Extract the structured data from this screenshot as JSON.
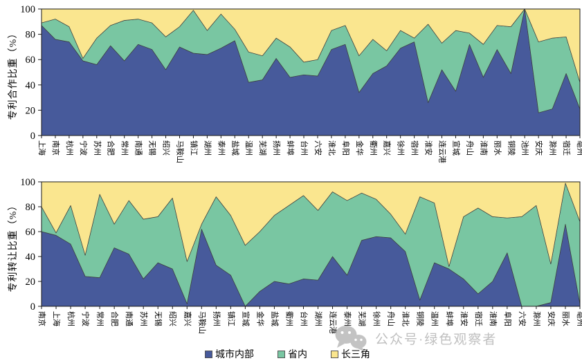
{
  "colors": {
    "within_city": "#475a9b",
    "within_province": "#79c6a2",
    "yangtze_delta": "#fae68f",
    "outline": "#3c3c3c",
    "frame": "#1a1a1a",
    "text": "#000000",
    "watermark": "#b5b5b5"
  },
  "legend": {
    "items": [
      {
        "key": "within_city",
        "label": "城市内部"
      },
      {
        "key": "within_province",
        "label": "省内"
      },
      {
        "key": "yangtze_delta",
        "label": "长三角"
      }
    ]
  },
  "watermark": {
    "text": "公众号·绿色观察者",
    "icon": "wechat-icon"
  },
  "chart_data": [
    {
      "type": "area",
      "stacked": true,
      "title": "",
      "xlabel": "",
      "ylabel": "专利合作比重（%）",
      "ylim": [
        0,
        100
      ],
      "yticks": [
        0,
        20,
        40,
        60,
        80,
        100
      ],
      "grid": false,
      "legend_position": "shared-bottom",
      "categories": [
        "上海",
        "南京",
        "杭州",
        "宁波",
        "苏州",
        "合肥",
        "常州",
        "南通",
        "无锡",
        "绍兴",
        "马鞍山",
        "镇江",
        "湖州",
        "泰州",
        "盐城",
        "温州",
        "芜湖",
        "扬州",
        "蚌埠",
        "台州",
        "六安",
        "淮北",
        "阜阳",
        "金华",
        "衢州",
        "嘉兴",
        "徐州",
        "宿州",
        "淮安",
        "连云港",
        "宣城",
        "舟山",
        "淮南",
        "丽水",
        "铜陵",
        "池州",
        "安庆",
        "滁州",
        "宿迁",
        "亳州"
      ],
      "series": [
        {
          "key": "within_city",
          "name": "城市内部",
          "values": [
            87,
            76,
            74,
            59,
            56,
            71,
            59,
            72,
            68,
            52,
            70,
            65,
            64,
            69,
            75,
            42,
            44,
            61,
            46,
            48,
            47,
            68,
            72,
            34,
            49,
            55,
            69,
            74,
            26,
            52,
            35,
            72,
            46,
            68,
            49,
            100,
            18,
            21,
            49,
            21
          ]
        },
        {
          "key": "within_province",
          "name": "省内",
          "values": [
            2,
            16,
            12,
            2,
            21,
            16,
            32,
            20,
            21,
            26,
            16,
            34,
            19,
            27,
            9,
            24,
            19,
            16,
            24,
            10,
            13,
            15,
            15,
            29,
            27,
            12,
            14,
            3,
            62,
            21,
            48,
            9,
            26,
            19,
            37,
            0,
            56,
            56,
            29,
            21
          ]
        },
        {
          "key": "yangtze_delta",
          "name": "长三角",
          "values": [
            11,
            8,
            14,
            39,
            23,
            13,
            9,
            8,
            11,
            22,
            14,
            1,
            17,
            4,
            16,
            34,
            37,
            23,
            30,
            42,
            40,
            17,
            13,
            37,
            24,
            33,
            17,
            23,
            12,
            27,
            17,
            19,
            28,
            13,
            14,
            0,
            26,
            23,
            22,
            58
          ]
        }
      ]
    },
    {
      "type": "area",
      "stacked": true,
      "title": "",
      "xlabel": "",
      "ylabel": "专利转让比重（%）",
      "ylim": [
        0,
        100
      ],
      "yticks": [
        0,
        20,
        40,
        60,
        80,
        100
      ],
      "grid": false,
      "legend_position": "shared-bottom",
      "categories": [
        "南京",
        "上海",
        "杭州",
        "宁波",
        "常州",
        "合肥",
        "南通",
        "苏州",
        "无锡",
        "绍兴",
        "嘉兴",
        "马鞍山",
        "扬州",
        "镇江",
        "宣城",
        "金华",
        "盐城",
        "衢州",
        "台州",
        "湖州",
        "连云港",
        "泰州",
        "芜湖",
        "徐州",
        "舟山",
        "淮北",
        "铜陵",
        "温州",
        "蚌埠",
        "淮安",
        "宿迁",
        "淮南",
        "阜阳",
        "六安",
        "滁州",
        "安庆",
        "丽水",
        "亳州"
      ],
      "series": [
        {
          "key": "within_city",
          "name": "城市内部",
          "values": [
            60,
            57,
            50,
            24,
            23,
            47,
            42,
            22,
            35,
            30,
            2,
            62,
            33,
            25,
            0,
            12,
            20,
            18,
            22,
            21,
            40,
            25,
            53,
            56,
            55,
            44,
            5,
            35,
            30,
            22,
            10,
            20,
            43,
            0,
            0,
            3,
            66,
            2
          ]
        },
        {
          "key": "within_province",
          "name": "省内",
          "values": [
            20,
            2,
            31,
            17,
            67,
            19,
            43,
            48,
            37,
            57,
            34,
            4,
            55,
            48,
            49,
            48,
            53,
            63,
            67,
            56,
            52,
            60,
            38,
            30,
            19,
            14,
            83,
            48,
            2,
            50,
            69,
            52,
            28,
            72,
            81,
            31,
            33,
            66
          ]
        },
        {
          "key": "yangtze_delta",
          "name": "长三角",
          "values": [
            20,
            41,
            19,
            59,
            10,
            34,
            15,
            30,
            28,
            13,
            64,
            34,
            12,
            27,
            51,
            40,
            27,
            19,
            11,
            23,
            8,
            15,
            9,
            14,
            26,
            42,
            12,
            17,
            68,
            28,
            21,
            28,
            29,
            28,
            19,
            66,
            1,
            32
          ]
        }
      ]
    }
  ]
}
